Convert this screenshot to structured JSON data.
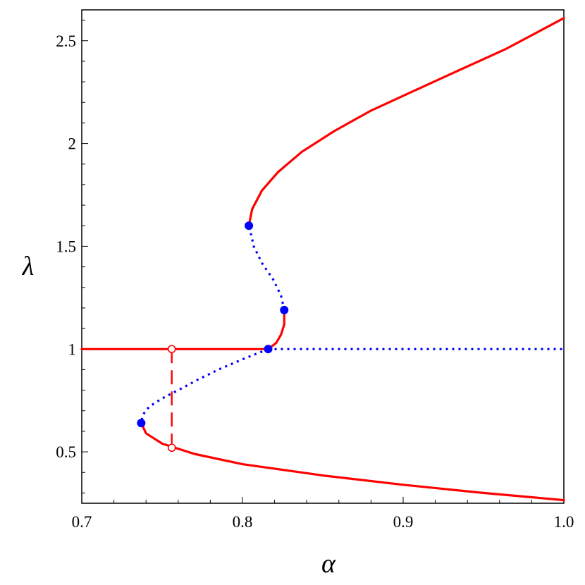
{
  "chart_data": {
    "type": "line",
    "xlabel": "α",
    "ylabel": "λ",
    "xlim": [
      0.7,
      1.0
    ],
    "ylim": [
      0.25,
      2.65
    ],
    "x_ticks": [
      {
        "value": 0.7,
        "label": "0.7"
      },
      {
        "value": 0.8,
        "label": "0.8"
      },
      {
        "value": 0.9,
        "label": "0.9"
      },
      {
        "value": 1.0,
        "label": "1.0"
      }
    ],
    "y_ticks": [
      {
        "value": 0.5,
        "label": "0.5"
      },
      {
        "value": 1.0,
        "label": "1"
      },
      {
        "value": 1.5,
        "label": "1.5"
      },
      {
        "value": 2.0,
        "label": "2"
      },
      {
        "value": 2.5,
        "label": "2.5"
      }
    ],
    "grid": false,
    "colors": {
      "stable": "#ff0000",
      "unstable": "#0000ff"
    },
    "series": [
      {
        "style": "solid",
        "color": "#ff0000",
        "points": [
          [
            0.7,
            1.0
          ],
          [
            0.75,
            1.0
          ],
          [
            0.816,
            1.0
          ]
        ]
      },
      {
        "style": "dotted",
        "color": "#0000ff",
        "points": [
          [
            0.816,
            1.0
          ],
          [
            0.9,
            1.0
          ],
          [
            1.0,
            1.0
          ]
        ]
      },
      {
        "style": "solid",
        "color": "#ff0000",
        "points": [
          [
            0.816,
            1.0
          ],
          [
            0.821,
            1.03
          ],
          [
            0.824,
            1.07
          ],
          [
            0.826,
            1.12
          ],
          [
            0.826,
            1.19
          ]
        ]
      },
      {
        "style": "dotted",
        "color": "#0000ff",
        "points": [
          [
            0.826,
            1.19
          ],
          [
            0.824,
            1.26
          ],
          [
            0.819,
            1.34
          ],
          [
            0.812,
            1.42
          ],
          [
            0.807,
            1.5
          ],
          [
            0.805,
            1.57
          ],
          [
            0.804,
            1.6
          ]
        ]
      },
      {
        "style": "solid",
        "color": "#ff0000",
        "points": [
          [
            0.804,
            1.6
          ],
          [
            0.806,
            1.68
          ],
          [
            0.812,
            1.77
          ],
          [
            0.822,
            1.86
          ],
          [
            0.837,
            1.96
          ],
          [
            0.857,
            2.06
          ],
          [
            0.88,
            2.16
          ],
          [
            0.905,
            2.25
          ],
          [
            0.933,
            2.35
          ],
          [
            0.964,
            2.46
          ],
          [
            1.0,
            2.61
          ]
        ]
      },
      {
        "style": "dotted",
        "color": "#0000ff",
        "points": [
          [
            0.816,
            1.0
          ],
          [
            0.8,
            0.95
          ],
          [
            0.785,
            0.9
          ],
          [
            0.772,
            0.85
          ],
          [
            0.76,
            0.8
          ],
          [
            0.75,
            0.76
          ],
          [
            0.742,
            0.72
          ],
          [
            0.738,
            0.68
          ],
          [
            0.737,
            0.64
          ]
        ]
      },
      {
        "style": "solid",
        "color": "#ff0000",
        "points": [
          [
            0.737,
            0.64
          ],
          [
            0.74,
            0.59
          ],
          [
            0.75,
            0.54
          ],
          [
            0.77,
            0.49
          ],
          [
            0.8,
            0.44
          ],
          [
            0.85,
            0.385
          ],
          [
            0.9,
            0.34
          ],
          [
            0.95,
            0.3
          ],
          [
            1.0,
            0.265
          ]
        ]
      },
      {
        "style": "dashed",
        "color": "#ff0000",
        "points": [
          [
            0.756,
            1.0
          ],
          [
            0.756,
            0.52
          ]
        ]
      }
    ],
    "markers": [
      {
        "x": 0.804,
        "y": 1.6,
        "fill": "#0000ff",
        "filled": true
      },
      {
        "x": 0.826,
        "y": 1.19,
        "fill": "#0000ff",
        "filled": true
      },
      {
        "x": 0.816,
        "y": 1.0,
        "fill": "#0000ff",
        "filled": true
      },
      {
        "x": 0.737,
        "y": 0.64,
        "fill": "#0000ff",
        "filled": true
      },
      {
        "x": 0.756,
        "y": 1.0,
        "fill": "#ff0000",
        "filled": false
      },
      {
        "x": 0.756,
        "y": 0.52,
        "fill": "#ff0000",
        "filled": false
      }
    ]
  }
}
